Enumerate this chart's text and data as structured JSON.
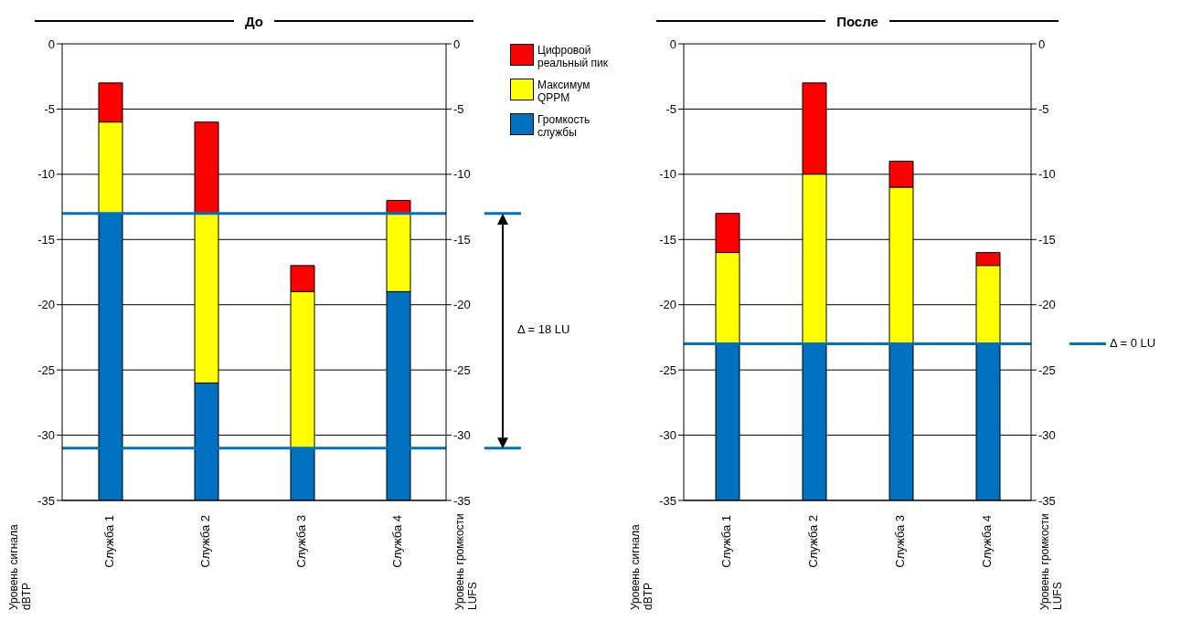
{
  "chart_data": [
    {
      "type": "bar",
      "title": "До",
      "categories": [
        "Служба 1",
        "Служба 2",
        "Служба 3",
        "Служба 4"
      ],
      "series": [
        {
          "name": "Цифровой реальный пик",
          "color": "#ff0000",
          "base": [
            -6,
            -13,
            -19,
            -13
          ],
          "values": [
            3,
            7,
            2,
            1
          ]
        },
        {
          "name": "Максимум QPPM",
          "color": "#ffff00",
          "base": [
            -13,
            -26,
            -31,
            -19
          ],
          "values": [
            7,
            13,
            12,
            6
          ]
        },
        {
          "name": "Громкость службы",
          "color": "#0070c0",
          "base": [
            -35,
            -35,
            -35,
            -35
          ],
          "values": [
            22,
            9,
            4,
            16
          ]
        }
      ],
      "ylim": [
        -35,
        0
      ],
      "yticks": [
        0,
        -5,
        -10,
        -15,
        -20,
        -25,
        -30,
        -35
      ],
      "y2lim": [
        -35,
        0
      ],
      "y2ticks": [
        0,
        -5,
        -10,
        -15,
        -20,
        -25,
        -30,
        -35
      ],
      "ylabel": "Уровень сигнала dBTP",
      "y2label": "Уровень громкости LUFS",
      "grid": "y",
      "legend": "right",
      "ref_lines": [
        {
          "axis": "y",
          "value": -13,
          "color": "#0070c0"
        },
        {
          "axis": "y",
          "value": -31,
          "color": "#0070c0"
        }
      ],
      "annotations": [
        "Δ = 18 LU"
      ]
    },
    {
      "type": "bar",
      "title": "После",
      "categories": [
        "Служба 1",
        "Служба 2",
        "Служба 3",
        "Служба 4"
      ],
      "series": [
        {
          "color": "#ff0000",
          "base": [
            -16,
            -10,
            -11,
            -17
          ],
          "values": [
            3,
            7,
            2,
            1
          ]
        },
        {
          "color": "#ffff00",
          "base": [
            -23,
            -23,
            -23,
            -23
          ],
          "values": [
            7,
            13,
            12,
            6
          ]
        },
        {
          "color": "#0070c0",
          "base": [
            -35,
            -35,
            -35,
            -35
          ],
          "values": [
            12,
            12,
            12,
            12
          ]
        }
      ],
      "ylim": [
        -35,
        0
      ],
      "yticks": [
        0,
        -5,
        -10,
        -15,
        -20,
        -25,
        -30,
        -35
      ],
      "y2lim": [
        -35,
        0
      ],
      "y2ticks": [
        0,
        -5,
        -10,
        -15,
        -20,
        -25,
        -30,
        -35
      ],
      "ylabel": "Уровень сигнала dBTP",
      "y2label": "Уровень громкости LUFS",
      "grid": "y",
      "ref_lines": [
        {
          "axis": "y",
          "value": -23,
          "color": "#0070c0"
        }
      ],
      "annotations": [
        "Δ = 0 LU"
      ]
    }
  ]
}
